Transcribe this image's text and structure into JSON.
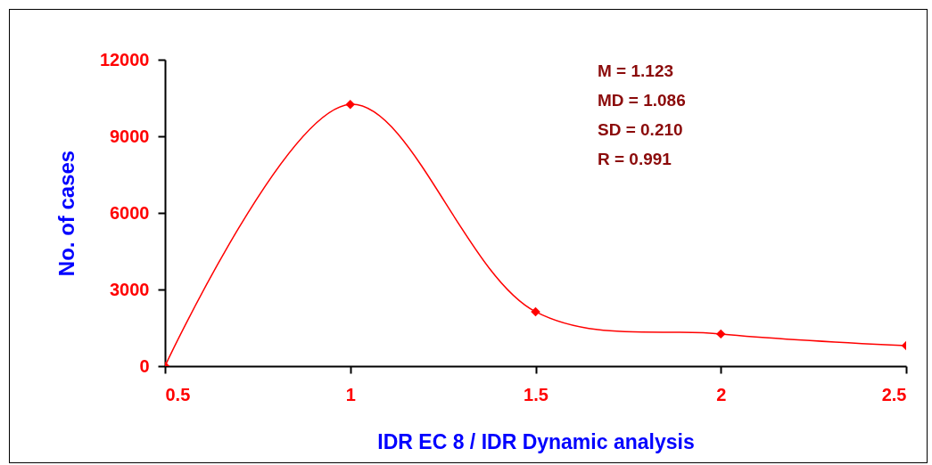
{
  "chart_data": {
    "type": "line",
    "xlabel": "IDR EC 8 / IDR Dynamic analysis",
    "ylabel": "No. of cases",
    "xlim": [
      0.5,
      2.5
    ],
    "xticks": [
      0.5,
      1,
      1.5,
      2,
      2.5
    ],
    "ylim": [
      0,
      12000
    ],
    "yticks": [
      0,
      3000,
      6000,
      9000,
      12000
    ],
    "grid": false,
    "legend": false,
    "marker": "diamond",
    "line_style": "solid",
    "annotations": [
      "M =   1.123",
      "MD = 1.086",
      "SD =  0.210",
      "R  =  0.991"
    ],
    "series": [
      {
        "type": "line",
        "color": "#ff0000",
        "x": [
          0.5,
          1,
          1.5,
          2,
          2.5
        ],
        "values": [
          0,
          10250,
          2130,
          1260,
          800
        ]
      }
    ]
  }
}
